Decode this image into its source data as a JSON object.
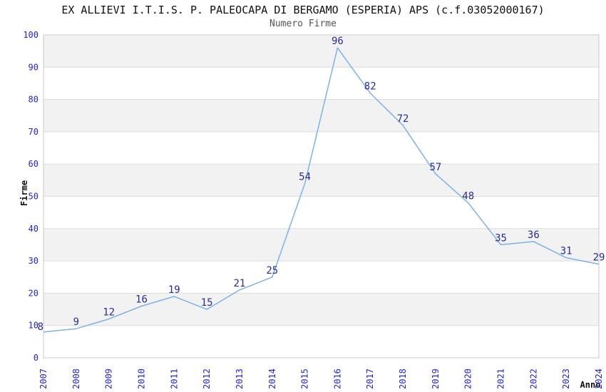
{
  "chart_data": {
    "type": "line",
    "title": "EX ALLIEVI I.T.I.S. P. PALEOCAPA DI BERGAMO (ESPERIA) APS (c.f.03052000167)",
    "subtitle": "Numero Firme",
    "xlabel": "Anno",
    "ylabel": "Firme",
    "categories": [
      "2007",
      "2008",
      "2009",
      "2010",
      "2011",
      "2012",
      "2013",
      "2014",
      "2015",
      "2016",
      "2017",
      "2018",
      "2019",
      "2020",
      "2021",
      "2022",
      "2023",
      "2024"
    ],
    "values": [
      8,
      9,
      12,
      16,
      19,
      15,
      21,
      25,
      54,
      96,
      82,
      72,
      57,
      48,
      35,
      36,
      31,
      29
    ],
    "ylim": [
      0,
      100
    ],
    "y_ticks": [
      0,
      10,
      20,
      30,
      40,
      50,
      60,
      70,
      80,
      90,
      100
    ],
    "grid": "horizontal-bands-alternating",
    "legend": "none",
    "data_labels_visible": true,
    "colors": {
      "line": "#7db1e8",
      "data_label": "#2b2b96",
      "tick_label": "#2424cc",
      "band": "#f2f2f2",
      "gridline": "#dcdcdc",
      "border": "#c9c9c9",
      "title": "#111111",
      "subtitle": "#555555",
      "axis_label": "#111111"
    }
  }
}
